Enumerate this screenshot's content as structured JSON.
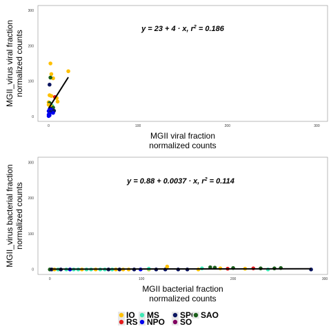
{
  "colors": {
    "IO": "#FFC000",
    "RS": "#E41A1C",
    "MS": "#3EE8B5",
    "NPO": "#0000EE",
    "SPO": "#0B1560",
    "SO": "#800060",
    "SAO": "#1A5E1A"
  },
  "legend": [
    {
      "label": "IO",
      "group": "IO"
    },
    {
      "label": "RS",
      "group": "RS"
    },
    {
      "label": "MS",
      "group": "MS"
    },
    {
      "label": "NPO",
      "group": "NPO"
    },
    {
      "label": "SPO",
      "group": "SPO"
    },
    {
      "label": "SO",
      "group": "SO"
    },
    {
      "label": "SAO",
      "group": "SAO"
    }
  ],
  "chart_data": [
    {
      "type": "scatter",
      "xlabel": [
        "MGII viral fraction",
        "normalized counts"
      ],
      "ylabel": [
        "MGII_virus viral fraction",
        "normalized counts"
      ],
      "xlim": [
        -12,
        312
      ],
      "ylim": [
        -14,
        314
      ],
      "xticks": [
        0,
        100,
        200,
        300
      ],
      "yticks": [
        0,
        100,
        200,
        300
      ],
      "equation": {
        "lhs": "y",
        "body": " = 23 + 4 · x,  ",
        "r": "r",
        "sup": "2",
        "tail": " = 0.186"
      },
      "fit": {
        "intercept": 23,
        "slope": 4,
        "x_range": [
          0,
          22
        ]
      },
      "points": [
        {
          "x": 2,
          "y": 150,
          "g": "IO"
        },
        {
          "x": 22,
          "y": 128,
          "g": "IO"
        },
        {
          "x": 3,
          "y": 120,
          "g": "IO"
        },
        {
          "x": 5,
          "y": 108,
          "g": "IO"
        },
        {
          "x": 2,
          "y": 110,
          "g": "SAO"
        },
        {
          "x": 1,
          "y": 90,
          "g": "SPO"
        },
        {
          "x": 1,
          "y": 60,
          "g": "IO"
        },
        {
          "x": 3,
          "y": 58,
          "g": "IO"
        },
        {
          "x": 7,
          "y": 55,
          "g": "RS"
        },
        {
          "x": 9,
          "y": 52,
          "g": "IO"
        },
        {
          "x": 10,
          "y": 42,
          "g": "IO"
        },
        {
          "x": 0,
          "y": 40,
          "g": "IO"
        },
        {
          "x": 1,
          "y": 38,
          "g": "SAO"
        },
        {
          "x": 2,
          "y": 35,
          "g": "SAO"
        },
        {
          "x": 0,
          "y": 33,
          "g": "IO"
        },
        {
          "x": 4,
          "y": 30,
          "g": "MS"
        },
        {
          "x": 3,
          "y": 28,
          "g": "IO"
        },
        {
          "x": 5,
          "y": 25,
          "g": "SAO"
        },
        {
          "x": 2,
          "y": 22,
          "g": "SPO"
        },
        {
          "x": 1,
          "y": 20,
          "g": "NPO"
        },
        {
          "x": 4,
          "y": 18,
          "g": "NPO"
        },
        {
          "x": 6,
          "y": 16,
          "g": "SPO"
        },
        {
          "x": 0,
          "y": 15,
          "g": "NPO"
        },
        {
          "x": 2,
          "y": 12,
          "g": "SPO"
        },
        {
          "x": 5,
          "y": 10,
          "g": "NPO"
        },
        {
          "x": 1,
          "y": 8,
          "g": "NPO"
        },
        {
          "x": 0,
          "y": 5,
          "g": "NPO"
        },
        {
          "x": 1,
          "y": 3,
          "g": "NPO"
        },
        {
          "x": 0,
          "y": 1,
          "g": "NPO"
        }
      ]
    },
    {
      "type": "scatter",
      "xlabel": [
        "MGII bacterial fraction",
        "normalized counts"
      ],
      "ylabel": [
        "MGII_virus bacterial fraction",
        "normalized counts"
      ],
      "xlim": [
        -13,
        303
      ],
      "ylim": [
        -14,
        314
      ],
      "xticks": [
        0,
        100,
        200,
        300
      ],
      "yticks": [
        0,
        100,
        200,
        300
      ],
      "equation": {
        "lhs": "y",
        "body": " = 0.88 + 0.0037 · x,  ",
        "r": "r",
        "sup": "2",
        "tail": " = 0.114"
      },
      "fit": {
        "intercept": 0.88,
        "slope": 0.0037,
        "x_range": [
          0,
          285
        ]
      },
      "points": [
        {
          "x": 0,
          "y": 0,
          "g": "SAO"
        },
        {
          "x": 2,
          "y": 0,
          "g": "SPO"
        },
        {
          "x": 5,
          "y": 0,
          "g": "IO"
        },
        {
          "x": 9,
          "y": 0,
          "g": "MS"
        },
        {
          "x": 12,
          "y": 0,
          "g": "SPO"
        },
        {
          "x": 18,
          "y": 0,
          "g": "MS"
        },
        {
          "x": 22,
          "y": 0,
          "g": "NPO"
        },
        {
          "x": 26,
          "y": 0,
          "g": "MS"
        },
        {
          "x": 31,
          "y": 0,
          "g": "MS"
        },
        {
          "x": 35,
          "y": 0,
          "g": "IO"
        },
        {
          "x": 40,
          "y": 0,
          "g": "MS"
        },
        {
          "x": 45,
          "y": 0,
          "g": "MS"
        },
        {
          "x": 50,
          "y": 0,
          "g": "IO"
        },
        {
          "x": 55,
          "y": 0,
          "g": "MS"
        },
        {
          "x": 60,
          "y": 0,
          "g": "MS"
        },
        {
          "x": 64,
          "y": 0,
          "g": "SPO"
        },
        {
          "x": 68,
          "y": 0,
          "g": "MS"
        },
        {
          "x": 72,
          "y": 0,
          "g": "IO"
        },
        {
          "x": 76,
          "y": 0,
          "g": "SPO"
        },
        {
          "x": 80,
          "y": 0,
          "g": "IO"
        },
        {
          "x": 86,
          "y": 0,
          "g": "IO"
        },
        {
          "x": 92,
          "y": 0,
          "g": "SPO"
        },
        {
          "x": 99,
          "y": 0,
          "g": "NPO"
        },
        {
          "x": 108,
          "y": 0,
          "g": "IO"
        },
        {
          "x": 116,
          "y": 0,
          "g": "SPO"
        },
        {
          "x": 126,
          "y": 0,
          "g": "SPO"
        },
        {
          "x": 140,
          "y": 0,
          "g": "SPO"
        },
        {
          "x": 150,
          "y": 0,
          "g": "SPO"
        },
        {
          "x": 162,
          "y": 0,
          "g": "IO"
        },
        {
          "x": 175,
          "y": 6,
          "g": "SAO"
        },
        {
          "x": 180,
          "y": 5,
          "g": "SAO"
        },
        {
          "x": 186,
          "y": 3,
          "g": "IO"
        },
        {
          "x": 194,
          "y": 2,
          "g": "RS"
        },
        {
          "x": 200,
          "y": 4,
          "g": "SAO"
        },
        {
          "x": 213,
          "y": 2,
          "g": "IO"
        },
        {
          "x": 222,
          "y": 3,
          "g": "RS"
        },
        {
          "x": 230,
          "y": 3,
          "g": "SAO"
        },
        {
          "x": 238,
          "y": 0,
          "g": "MS"
        },
        {
          "x": 245,
          "y": 3,
          "g": "SAO"
        },
        {
          "x": 252,
          "y": 4,
          "g": "SAO"
        },
        {
          "x": 285,
          "y": 0,
          "g": "SPO"
        },
        {
          "x": 128,
          "y": 8,
          "g": "IO"
        },
        {
          "x": 166,
          "y": 3,
          "g": "MS"
        },
        {
          "x": 108,
          "y": 2,
          "g": "MS"
        }
      ]
    }
  ]
}
